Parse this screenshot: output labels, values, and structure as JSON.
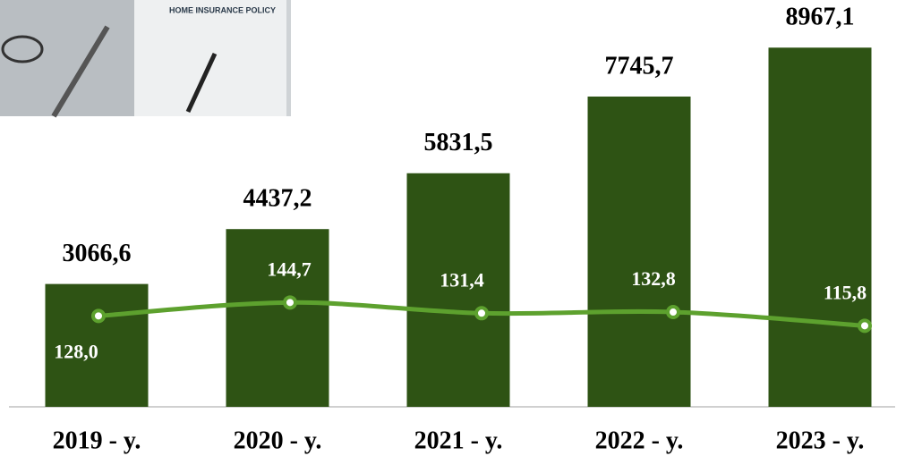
{
  "photo_text": "HOME INSURANCE POLICY",
  "chart_data": {
    "type": "bar",
    "categories": [
      "2019 - y.",
      "2020 - y.",
      "2021 - y.",
      "2022 - y.",
      "2023 - y."
    ],
    "ylim": [
      0,
      10000
    ],
    "y2lim": [
      15,
      513
    ],
    "series": [
      {
        "type": "bar",
        "color": "#2e5314",
        "values": [
          3066.6,
          4437.2,
          5831.5,
          7745.7,
          8967.1
        ],
        "value_labels": [
          "3066,6",
          "4437,2",
          "5831,5",
          "7745,7",
          "8967,1"
        ]
      },
      {
        "type": "line",
        "axis": "y2",
        "color": "#5da12e",
        "values": [
          128.0,
          144.7,
          131.4,
          132.8,
          115.8
        ],
        "value_labels": [
          "128,0",
          "144,7",
          "131,4",
          "132,8",
          "115,8"
        ]
      }
    ]
  }
}
